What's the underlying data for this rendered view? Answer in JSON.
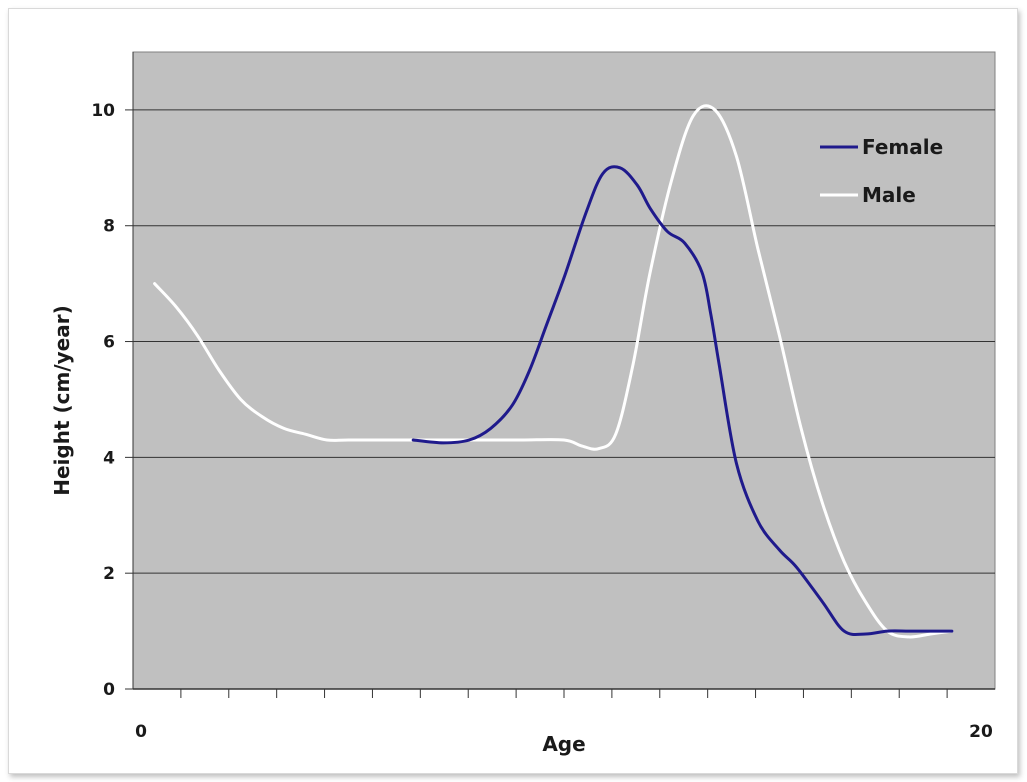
{
  "chart_data": {
    "type": "line",
    "title": "",
    "xlabel": "Age",
    "ylabel": "Height (cm/year)",
    "xlim": [
      0,
      20
    ],
    "ylim": [
      0,
      11
    ],
    "x_tick_labels": [
      {
        "value": 0,
        "label": "0"
      },
      {
        "value": 20,
        "label": "20"
      }
    ],
    "y_ticks": [
      0,
      2,
      4,
      6,
      8,
      10
    ],
    "x_minor_tick_count": 17,
    "grid": "horizontal",
    "plot_background": "#c0c0c0",
    "legend_position": "top-right",
    "series": [
      {
        "name": "Female",
        "color": "#1f1a8c",
        "x": [
          6.5,
          7.2,
          7.8,
          8.3,
          8.8,
          9.2,
          9.6,
          10.0,
          10.5,
          10.9,
          11.3,
          11.7,
          12.0,
          12.4,
          12.8,
          13.2,
          13.4,
          13.6,
          14.0,
          14.5,
          15.0,
          15.4,
          16.0,
          16.5,
          17.0,
          17.5,
          18.0,
          18.5,
          19.0
        ],
        "y": [
          4.3,
          4.25,
          4.3,
          4.5,
          4.9,
          5.5,
          6.3,
          7.1,
          8.2,
          8.9,
          9.0,
          8.7,
          8.3,
          7.9,
          7.7,
          7.2,
          6.5,
          5.6,
          3.9,
          2.9,
          2.4,
          2.1,
          1.5,
          1.0,
          0.95,
          1.0,
          1.0,
          1.0,
          1.0
        ]
      },
      {
        "name": "Male",
        "color": "#ffffff",
        "x": [
          0.5,
          1.0,
          1.5,
          2.0,
          2.5,
          3.0,
          3.5,
          4.0,
          4.5,
          5.0,
          6.0,
          7.0,
          8.0,
          9.0,
          10.0,
          10.4,
          10.8,
          11.2,
          11.6,
          12.0,
          12.5,
          13.0,
          13.5,
          14.0,
          14.5,
          15.0,
          15.5,
          16.0,
          16.5,
          17.0,
          17.5,
          18.0,
          18.5,
          19.0
        ],
        "y": [
          7.0,
          6.6,
          6.1,
          5.5,
          5.0,
          4.7,
          4.5,
          4.4,
          4.3,
          4.3,
          4.3,
          4.3,
          4.3,
          4.3,
          4.3,
          4.2,
          4.15,
          4.4,
          5.6,
          7.2,
          8.8,
          9.9,
          10.0,
          9.2,
          7.6,
          6.1,
          4.5,
          3.2,
          2.2,
          1.5,
          1.0,
          0.9,
          0.95,
          1.0
        ]
      }
    ]
  }
}
